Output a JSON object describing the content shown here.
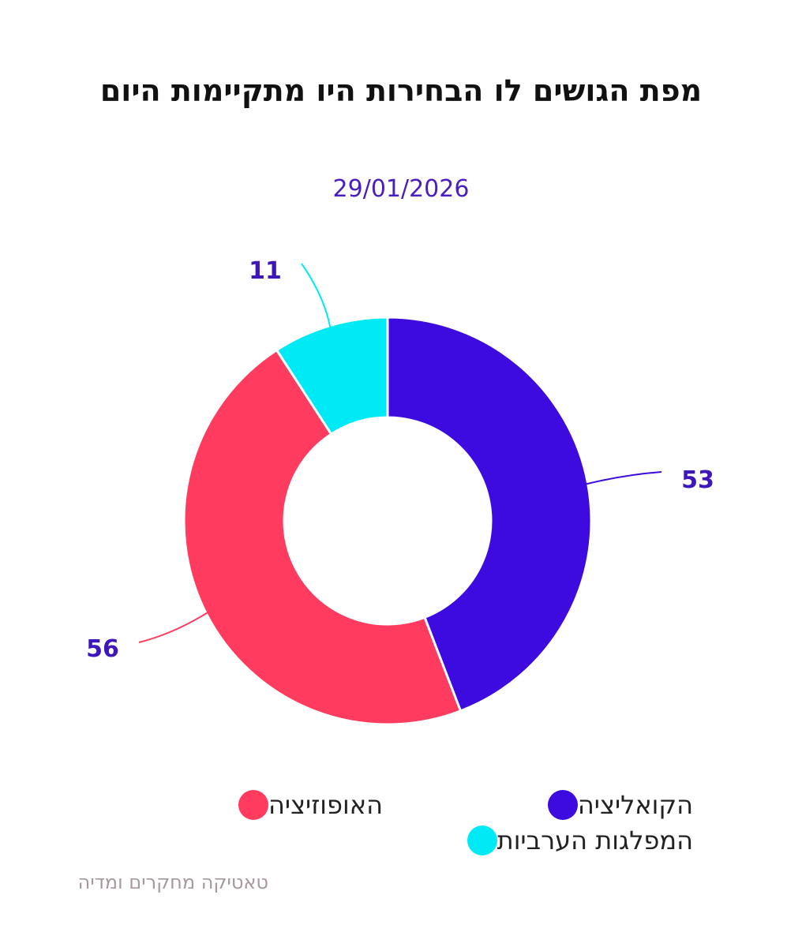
{
  "title": "מפת הגושים לו הבחירות היו מתקיימות היום",
  "subtitle": "29/01/2026",
  "source": "טאטיקה מחקרים ומדיה",
  "chart_data": {
    "type": "pie",
    "variant": "donut",
    "categories": [
      "הקואליציה",
      "האופוזיציה",
      "המפלגות הערביות"
    ],
    "values": [
      53,
      56,
      11
    ],
    "colors": [
      "#3d0be0",
      "#ff3b5f",
      "#00eaf6"
    ],
    "label_color": "#3d17b8",
    "legend_position": "bottom"
  },
  "legend": {
    "coalition": {
      "label": "הקואליציה",
      "color": "#3d0be0"
    },
    "opposition": {
      "label": "האופוזיציה",
      "color": "#ff3b5f"
    },
    "arab": {
      "label": "המפלגות הערביות",
      "color": "#00eaf6"
    }
  }
}
